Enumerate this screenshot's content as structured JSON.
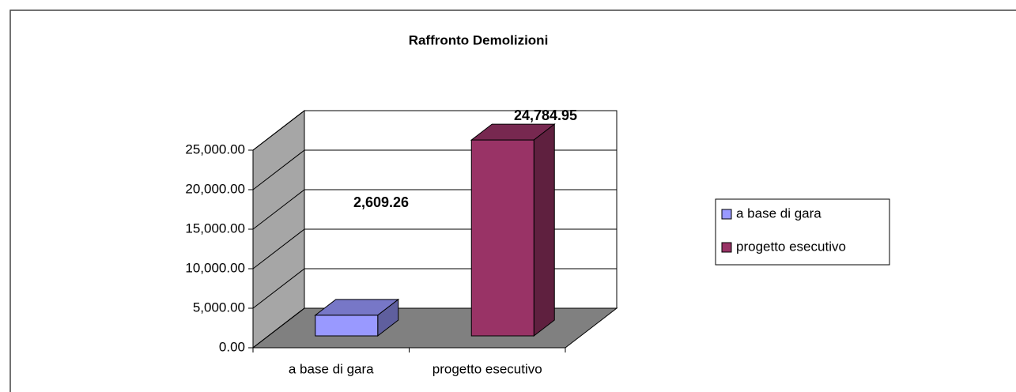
{
  "chart_data": {
    "type": "bar3d",
    "title": "Raffronto Demolizioni",
    "categories": [
      "a base di gara",
      "progetto esecutivo"
    ],
    "values": [
      2609.26,
      24784.95
    ],
    "value_labels": [
      "2,609.26",
      "24,784.95"
    ],
    "colors": [
      "#9999ff",
      "#993366"
    ],
    "ylim": [
      0,
      25000
    ],
    "yticks": [
      {
        "value": 0,
        "label": "0.00"
      },
      {
        "value": 5000,
        "label": "5,000.00"
      },
      {
        "value": 10000,
        "label": "10,000.00"
      },
      {
        "value": 15000,
        "label": "15,000.00"
      },
      {
        "value": 20000,
        "label": "20,000.00"
      },
      {
        "value": 25000,
        "label": "25,000.00"
      }
    ],
    "grid": true,
    "legend": "right"
  }
}
